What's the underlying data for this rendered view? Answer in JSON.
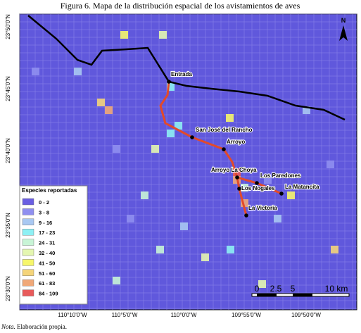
{
  "title": "Figura 6. Mapa de la distribución espacial de los avistamientos de aves",
  "legend": {
    "title": "Especies reportadas",
    "items": [
      {
        "label": "0 - 2",
        "color": "#6a5ee2"
      },
      {
        "label": "3 - 8",
        "color": "#8f8ff0"
      },
      {
        "label": "9 - 16",
        "color": "#a9c8f2"
      },
      {
        "label": "17 - 23",
        "color": "#8ef0f4"
      },
      {
        "label": "24 - 31",
        "color": "#c8f4d6"
      },
      {
        "label": "32 - 40",
        "color": "#e4f6b0"
      },
      {
        "label": "41 - 50",
        "color": "#f6f66a"
      },
      {
        "label": "51 - 60",
        "color": "#f4d47a"
      },
      {
        "label": "61 - 83",
        "color": "#f0a878"
      },
      {
        "label": "84 - 109",
        "color": "#e85a5a"
      }
    ]
  },
  "places": [
    "Entrada",
    "San José del Rancho",
    "Arroyo",
    "Arroyo La Choya",
    "Los Paredones",
    "Los Nogales",
    "La Matancita",
    "La Victoria"
  ],
  "lat_labels": [
    "23°50'0\"N",
    "23°45'0\"N",
    "23°40'0\"N",
    "23°35'0\"N",
    "23°30'0\"N"
  ],
  "lon_labels": [
    "110°10'0\"W",
    "110°5'0\"W",
    "110°0'0\"W",
    "109°55'0\"W",
    "109°50'0\"W"
  ],
  "scale_labels": [
    "0",
    "2.5",
    "5",
    "10 km"
  ],
  "north": "N",
  "note": {
    "prefix": "Nota.",
    "text": "Elaboración propia."
  }
}
